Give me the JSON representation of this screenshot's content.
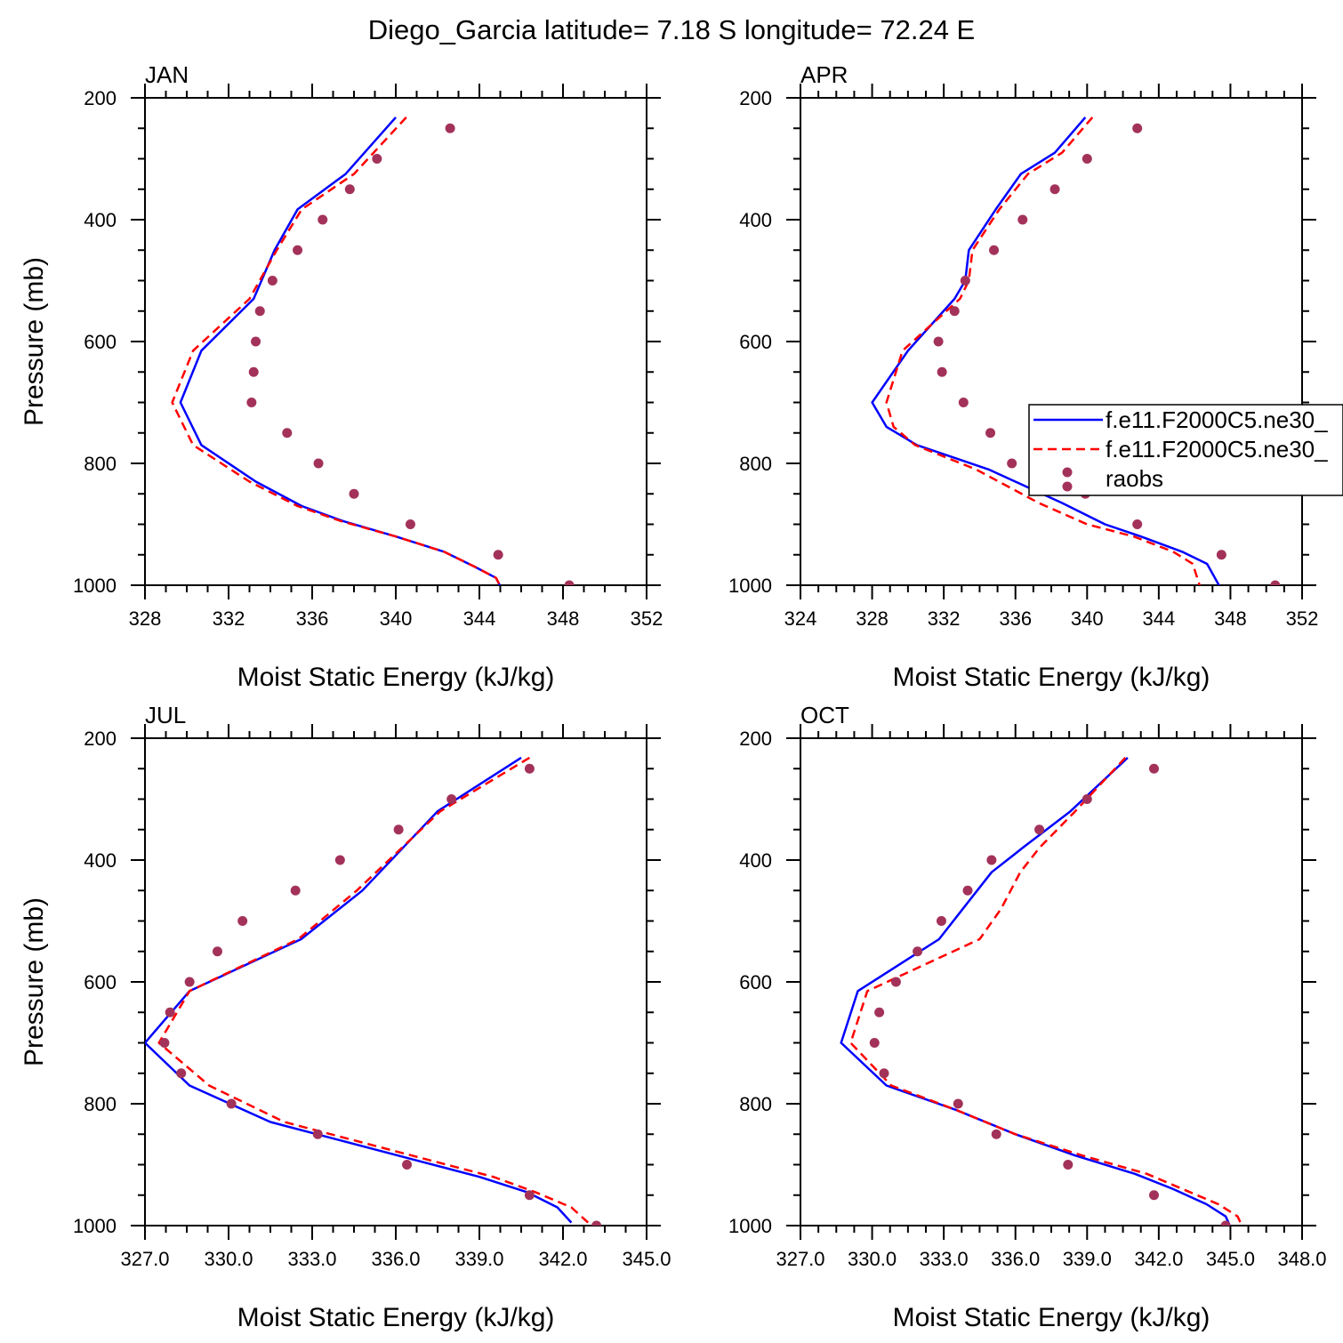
{
  "figure": {
    "title": "Diego_Garcia  latitude= 7.18 S longitude= 72.24 E"
  },
  "colors": {
    "model_1": "#0000ff",
    "model_2": "#ff0000",
    "raobs": "#a3325a",
    "axes": "#000000"
  },
  "legend": {
    "panel": "APR",
    "entries": [
      {
        "label": "f.e11.F2000C5.ne30_",
        "style": "solid-line",
        "color_key": "model_1"
      },
      {
        "label": "f.e11.F2000C5.ne30_",
        "style": "dashed-line",
        "color_key": "model_2"
      },
      {
        "label": "raobs",
        "style": "markers",
        "color_key": "raobs"
      }
    ]
  },
  "chart_data": [
    {
      "type": "line",
      "panel": "JAN",
      "title": "JAN",
      "xlabel": "Moist Static Energy (kJ/kg)",
      "ylabel": "Pressure (mb)",
      "xlim": [
        328,
        352
      ],
      "ylim": [
        200,
        1000
      ],
      "y_inverted": true,
      "xticks": [
        328,
        332,
        336,
        340,
        344,
        348,
        352
      ],
      "xtick_labels": [
        "328",
        "332",
        "336",
        "340",
        "344",
        "348",
        "352"
      ],
      "yticks": [
        200,
        400,
        600,
        800,
        1000
      ],
      "ytick_labels": [
        "200",
        "400",
        "600",
        "800",
        "1000"
      ],
      "legend": false,
      "grid": false,
      "series": [
        {
          "style": "solid",
          "color_key": "model_1",
          "x": [
            340.0,
            337.6,
            335.3,
            334.2,
            333.2,
            330.7,
            329.7,
            330.7,
            333.3,
            335.5,
            337.5,
            340.0,
            342.3,
            343.8,
            344.8,
            345.0
          ],
          "y": [
            232,
            325,
            383,
            450,
            530,
            615,
            700,
            770,
            830,
            870,
            895,
            920,
            945,
            970,
            988,
            1002
          ]
        },
        {
          "style": "dashed",
          "color_key": "model_2",
          "x": [
            340.5,
            338.0,
            335.5,
            334.3,
            333.0,
            330.3,
            329.3,
            330.3,
            333.0,
            335.3,
            337.4,
            340.0,
            342.3,
            343.8,
            344.8,
            345.0
          ],
          "y": [
            232,
            325,
            383,
            450,
            530,
            615,
            700,
            770,
            830,
            870,
            895,
            920,
            945,
            970,
            988,
            1002
          ]
        },
        {
          "style": "markers",
          "color_key": "raobs",
          "x": [
            342.6,
            339.1,
            337.8,
            336.5,
            335.3,
            334.1,
            333.5,
            333.3,
            333.2,
            333.1,
            334.8,
            336.3,
            338.0,
            340.7,
            344.9,
            348.3
          ],
          "y": [
            250,
            300,
            350,
            400,
            450,
            500,
            550,
            600,
            650,
            700,
            750,
            800,
            850,
            900,
            950,
            1000
          ]
        }
      ]
    },
    {
      "type": "line",
      "panel": "APR",
      "title": "APR",
      "xlabel": "Moist Static Energy (kJ/kg)",
      "ylabel": "",
      "xlim": [
        324,
        352
      ],
      "ylim": [
        200,
        1000
      ],
      "y_inverted": true,
      "xticks": [
        324,
        328,
        332,
        336,
        340,
        344,
        348,
        352
      ],
      "xtick_labels": [
        "324",
        "328",
        "332",
        "336",
        "340",
        "344",
        "348",
        "352"
      ],
      "yticks": [
        200,
        400,
        600,
        800,
        1000
      ],
      "ytick_labels": [
        "200",
        "400",
        "600",
        "800",
        "1000"
      ],
      "legend": true,
      "grid": false,
      "series": [
        {
          "style": "solid",
          "color_key": "model_1",
          "x": [
            339.9,
            338.2,
            336.3,
            334.9,
            333.4,
            333.2,
            332.6,
            330.0,
            328.0,
            328.8,
            330.5,
            334.5,
            338.6,
            341.0,
            343.0,
            345.3,
            346.7,
            347.4
          ],
          "y": [
            232,
            290,
            325,
            383,
            450,
            500,
            530,
            615,
            700,
            740,
            770,
            810,
            865,
            900,
            920,
            945,
            965,
            1002
          ]
        },
        {
          "style": "dashed",
          "color_key": "model_2",
          "x": [
            340.3,
            338.6,
            336.7,
            335.1,
            333.6,
            333.4,
            332.9,
            329.7,
            328.8,
            329.2,
            330.4,
            333.8,
            337.3,
            340.0,
            342.6,
            344.8,
            345.9,
            346.3
          ],
          "y": [
            232,
            290,
            325,
            383,
            450,
            500,
            530,
            615,
            700,
            740,
            770,
            810,
            865,
            900,
            920,
            945,
            965,
            1002
          ]
        },
        {
          "style": "markers",
          "color_key": "raobs",
          "x": [
            342.8,
            340.0,
            338.2,
            336.4,
            334.8,
            333.2,
            332.6,
            331.7,
            331.9,
            333.1,
            334.6,
            335.8,
            339.9,
            342.8,
            347.5,
            350.5
          ],
          "y": [
            250,
            300,
            350,
            400,
            450,
            500,
            550,
            600,
            650,
            700,
            750,
            800,
            850,
            900,
            950,
            1000
          ]
        }
      ]
    },
    {
      "type": "line",
      "panel": "JUL",
      "title": "JUL",
      "xlabel": "Moist Static Energy (kJ/kg)",
      "ylabel": "Pressure (mb)",
      "xlim": [
        327.0,
        345.0
      ],
      "ylim": [
        200,
        1000
      ],
      "y_inverted": true,
      "xticks": [
        327.0,
        330.0,
        333.0,
        336.0,
        339.0,
        342.0,
        345.0
      ],
      "xtick_labels": [
        "327.0",
        "330.0",
        "333.0",
        "336.0",
        "339.0",
        "342.0",
        "345.0"
      ],
      "yticks": [
        200,
        400,
        600,
        800,
        1000
      ],
      "ytick_labels": [
        "200",
        "400",
        "600",
        "800",
        "1000"
      ],
      "legend": false,
      "grid": false,
      "series": [
        {
          "style": "solid",
          "color_key": "model_1",
          "x": [
            340.5,
            337.5,
            334.8,
            332.6,
            328.6,
            327.0,
            328.6,
            331.5,
            334.0,
            336.5,
            339.0,
            340.7,
            341.8,
            342.3
          ],
          "y": [
            232,
            320,
            450,
            530,
            615,
            700,
            770,
            830,
            860,
            890,
            920,
            945,
            970,
            995
          ]
        },
        {
          "style": "dashed",
          "color_key": "model_2",
          "x": [
            340.8,
            337.6,
            334.6,
            332.5,
            328.6,
            327.5,
            329.3,
            332.0,
            334.5,
            337.0,
            339.5,
            341.0,
            342.3,
            342.9
          ],
          "y": [
            232,
            320,
            450,
            530,
            615,
            700,
            770,
            830,
            860,
            890,
            920,
            945,
            970,
            995
          ]
        },
        {
          "style": "markers",
          "color_key": "raobs",
          "x": [
            340.8,
            338.0,
            336.1,
            334.0,
            332.4,
            330.5,
            329.6,
            328.6,
            327.9,
            327.7,
            328.3,
            330.1,
            333.2,
            336.4,
            340.8,
            343.2
          ],
          "y": [
            250,
            300,
            350,
            400,
            450,
            500,
            550,
            600,
            650,
            700,
            750,
            800,
            850,
            900,
            950,
            1000
          ]
        }
      ]
    },
    {
      "type": "line",
      "panel": "OCT",
      "title": "OCT",
      "xlabel": "Moist Static Energy (kJ/kg)",
      "ylabel": "",
      "xlim": [
        327.0,
        348.0
      ],
      "ylim": [
        200,
        1000
      ],
      "y_inverted": true,
      "xticks": [
        327.0,
        330.0,
        333.0,
        336.0,
        339.0,
        342.0,
        345.0,
        348.0
      ],
      "xtick_labels": [
        "327.0",
        "330.0",
        "333.0",
        "336.0",
        "339.0",
        "342.0",
        "345.0",
        "348.0"
      ],
      "yticks": [
        200,
        400,
        600,
        800,
        1000
      ],
      "ytick_labels": [
        "200",
        "400",
        "600",
        "800",
        "1000"
      ],
      "legend": false,
      "grid": false,
      "series": [
        {
          "style": "solid",
          "color_key": "model_1",
          "x": [
            340.7,
            338.3,
            336.3,
            335.0,
            333.8,
            332.8,
            329.4,
            328.7,
            330.6,
            333.5,
            336.0,
            338.5,
            341.0,
            342.6,
            344.0,
            344.8,
            345.0
          ],
          "y": [
            232,
            320,
            380,
            420,
            480,
            530,
            615,
            700,
            770,
            810,
            850,
            885,
            915,
            940,
            965,
            985,
            1002
          ]
        },
        {
          "style": "dashed",
          "color_key": "model_2",
          "x": [
            340.6,
            338.5,
            337.0,
            336.2,
            335.4,
            334.5,
            329.8,
            329.1,
            330.8,
            333.5,
            336.0,
            338.8,
            341.5,
            343.0,
            344.5,
            345.3,
            345.5
          ],
          "y": [
            232,
            320,
            380,
            420,
            480,
            530,
            615,
            700,
            770,
            810,
            850,
            885,
            915,
            940,
            965,
            985,
            1002
          ]
        },
        {
          "style": "markers",
          "color_key": "raobs",
          "x": [
            341.8,
            339.0,
            337.0,
            335.0,
            334.0,
            332.9,
            331.9,
            331.0,
            330.3,
            330.1,
            330.5,
            333.6,
            335.2,
            338.2,
            341.8,
            344.8
          ],
          "y": [
            250,
            300,
            350,
            400,
            450,
            500,
            550,
            600,
            650,
            700,
            750,
            800,
            850,
            900,
            950,
            1000
          ]
        }
      ]
    }
  ]
}
